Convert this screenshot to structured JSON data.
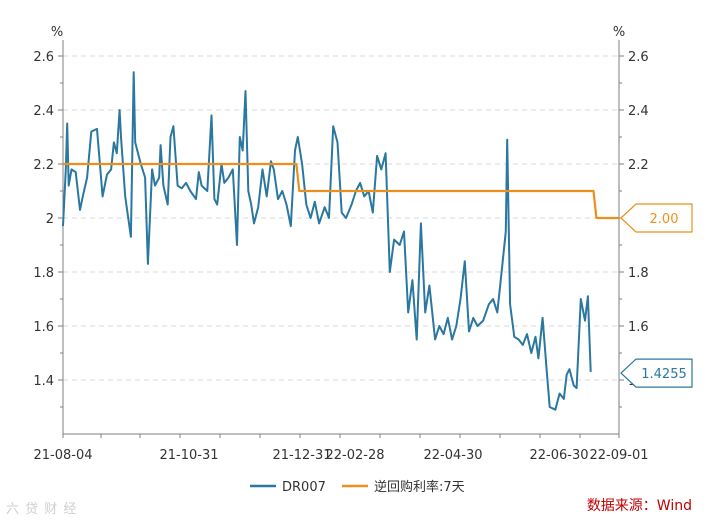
{
  "chart_data": {
    "type": "line",
    "y_unit_left": "%",
    "y_unit_right": "%",
    "ylim": [
      1.2,
      2.6
    ],
    "yticks": [
      "1.4",
      "1.6",
      "1.8",
      "2",
      "2.2",
      "2.4",
      "2.6"
    ],
    "x_tick_labels": [
      "21-08-04",
      "21-10-31",
      "21-12-31",
      "22-02-28",
      "22-04-30",
      "22-06-30",
      "22-09-01"
    ],
    "x_start": "2021-08-04",
    "x_end": "2022-09-01",
    "grid": true,
    "legend_position": "bottom",
    "series": [
      {
        "name": "DR007",
        "color": "#2a77a0",
        "points": [
          [
            "2021-08-04",
            1.97
          ],
          [
            "2021-08-06",
            2.18
          ],
          [
            "2021-08-07",
            2.35
          ],
          [
            "2021-08-08",
            2.12
          ],
          [
            "2021-08-10",
            2.18
          ],
          [
            "2021-08-13",
            2.17
          ],
          [
            "2021-08-16",
            2.03
          ],
          [
            "2021-08-18",
            2.08
          ],
          [
            "2021-08-21",
            2.15
          ],
          [
            "2021-08-24",
            2.32
          ],
          [
            "2021-08-28",
            2.33
          ],
          [
            "2021-09-01",
            2.08
          ],
          [
            "2021-09-04",
            2.16
          ],
          [
            "2021-09-07",
            2.18
          ],
          [
            "2021-09-09",
            2.28
          ],
          [
            "2021-09-11",
            2.24
          ],
          [
            "2021-09-13",
            2.4
          ],
          [
            "2021-09-14",
            2.3
          ],
          [
            "2021-09-17",
            2.08
          ],
          [
            "2021-09-21",
            1.93
          ],
          [
            "2021-09-23",
            2.54
          ],
          [
            "2021-09-24",
            2.28
          ],
          [
            "2021-09-28",
            2.2
          ],
          [
            "2021-10-01",
            2.15
          ],
          [
            "2021-10-03",
            1.83
          ],
          [
            "2021-10-06",
            2.18
          ],
          [
            "2021-10-08",
            2.12
          ],
          [
            "2021-10-11",
            2.15
          ],
          [
            "2021-10-12",
            2.27
          ],
          [
            "2021-10-14",
            2.12
          ],
          [
            "2021-10-17",
            2.05
          ],
          [
            "2021-10-19",
            2.3
          ],
          [
            "2021-10-21",
            2.34
          ],
          [
            "2021-10-24",
            2.12
          ],
          [
            "2021-10-27",
            2.11
          ],
          [
            "2021-10-30",
            2.13
          ],
          [
            "2021-11-02",
            2.1
          ],
          [
            "2021-11-06",
            2.07
          ],
          [
            "2021-11-08",
            2.17
          ],
          [
            "2021-11-10",
            2.12
          ],
          [
            "2021-11-14",
            2.1
          ],
          [
            "2021-11-17",
            2.38
          ],
          [
            "2021-11-19",
            2.07
          ],
          [
            "2021-11-21",
            2.05
          ],
          [
            "2021-11-24",
            2.2
          ],
          [
            "2021-11-26",
            2.13
          ],
          [
            "2021-11-29",
            2.15
          ],
          [
            "2021-12-02",
            2.18
          ],
          [
            "2021-12-05",
            1.9
          ],
          [
            "2021-12-07",
            2.3
          ],
          [
            "2021-12-09",
            2.25
          ],
          [
            "2021-12-11",
            2.47
          ],
          [
            "2021-12-13",
            2.1
          ],
          [
            "2021-12-15",
            2.05
          ],
          [
            "2021-12-17",
            1.98
          ],
          [
            "2021-12-20",
            2.04
          ],
          [
            "2021-12-23",
            2.18
          ],
          [
            "2021-12-26",
            2.08
          ],
          [
            "2021-12-29",
            2.21
          ],
          [
            "2021-12-31",
            2.18
          ],
          [
            "2022-01-03",
            2.07
          ],
          [
            "2022-01-06",
            2.1
          ],
          [
            "2022-01-09",
            2.05
          ],
          [
            "2022-01-12",
            1.97
          ],
          [
            "2022-01-15",
            2.25
          ],
          [
            "2022-01-17",
            2.3
          ],
          [
            "2022-01-20",
            2.2
          ],
          [
            "2022-01-23",
            2.05
          ],
          [
            "2022-01-26",
            2.0
          ],
          [
            "2022-01-29",
            2.06
          ],
          [
            "2022-02-01",
            1.98
          ],
          [
            "2022-02-05",
            2.04
          ],
          [
            "2022-02-08",
            2.0
          ],
          [
            "2022-02-11",
            2.34
          ],
          [
            "2022-02-14",
            2.28
          ],
          [
            "2022-02-17",
            2.02
          ],
          [
            "2022-02-20",
            2.0
          ],
          [
            "2022-02-24",
            2.05
          ],
          [
            "2022-02-27",
            2.1
          ],
          [
            "2022-03-02",
            2.13
          ],
          [
            "2022-03-05",
            2.08
          ],
          [
            "2022-03-08",
            2.1
          ],
          [
            "2022-03-11",
            2.02
          ],
          [
            "2022-03-14",
            2.23
          ],
          [
            "2022-03-17",
            2.18
          ],
          [
            "2022-03-20",
            2.24
          ],
          [
            "2022-03-23",
            1.8
          ],
          [
            "2022-03-26",
            1.92
          ],
          [
            "2022-03-30",
            1.9
          ],
          [
            "2022-04-02",
            1.95
          ],
          [
            "2022-04-05",
            1.65
          ],
          [
            "2022-04-08",
            1.77
          ],
          [
            "2022-04-11",
            1.55
          ],
          [
            "2022-04-14",
            1.98
          ],
          [
            "2022-04-17",
            1.65
          ],
          [
            "2022-04-20",
            1.75
          ],
          [
            "2022-04-24",
            1.55
          ],
          [
            "2022-04-27",
            1.6
          ],
          [
            "2022-04-30",
            1.57
          ],
          [
            "2022-05-03",
            1.63
          ],
          [
            "2022-05-06",
            1.55
          ],
          [
            "2022-05-09",
            1.6
          ],
          [
            "2022-05-12",
            1.7
          ],
          [
            "2022-05-15",
            1.84
          ],
          [
            "2022-05-18",
            1.58
          ],
          [
            "2022-05-21",
            1.63
          ],
          [
            "2022-05-24",
            1.6
          ],
          [
            "2022-05-28",
            1.62
          ],
          [
            "2022-06-01",
            1.68
          ],
          [
            "2022-06-04",
            1.7
          ],
          [
            "2022-06-07",
            1.65
          ],
          [
            "2022-06-10",
            1.8
          ],
          [
            "2022-06-13",
            1.95
          ],
          [
            "2022-06-14",
            2.29
          ],
          [
            "2022-06-16",
            1.68
          ],
          [
            "2022-06-19",
            1.56
          ],
          [
            "2022-06-22",
            1.55
          ],
          [
            "2022-06-25",
            1.53
          ],
          [
            "2022-06-28",
            1.57
          ],
          [
            "2022-07-01",
            1.5
          ],
          [
            "2022-07-04",
            1.56
          ],
          [
            "2022-07-06",
            1.48
          ],
          [
            "2022-07-09",
            1.63
          ],
          [
            "2022-07-12",
            1.43
          ],
          [
            "2022-07-14",
            1.3
          ],
          [
            "2022-07-18",
            1.29
          ],
          [
            "2022-07-21",
            1.35
          ],
          [
            "2022-07-24",
            1.33
          ],
          [
            "2022-07-26",
            1.42
          ],
          [
            "2022-07-28",
            1.44
          ],
          [
            "2022-07-31",
            1.38
          ],
          [
            "2022-08-02",
            1.37
          ],
          [
            "2022-08-05",
            1.7
          ],
          [
            "2022-08-08",
            1.62
          ],
          [
            "2022-08-10",
            1.71
          ],
          [
            "2022-08-12",
            1.43
          ]
        ]
      },
      {
        "name": "逆回购利率:7天",
        "color": "#ed8f1c",
        "points": [
          [
            "2021-08-04",
            2.2
          ],
          [
            "2022-01-16",
            2.2
          ],
          [
            "2022-01-18",
            2.1
          ],
          [
            "2022-08-14",
            2.1
          ],
          [
            "2022-08-16",
            2.0
          ],
          [
            "2022-09-01",
            2.0
          ]
        ]
      }
    ],
    "end_labels": [
      {
        "series": "逆回购利率:7天",
        "text": "2.00",
        "value": 2.0,
        "color": "#ed8f1c"
      },
      {
        "series": "DR007",
        "text": "1.4255",
        "value": 1.4255,
        "color": "#2a77a0"
      }
    ]
  },
  "source_text": "数据来源：Wind",
  "watermark_text": "六 贷 财 经",
  "colors": {
    "grid": "#d9d9d9",
    "axis": "#7f7f7f",
    "source": "#c00000"
  }
}
